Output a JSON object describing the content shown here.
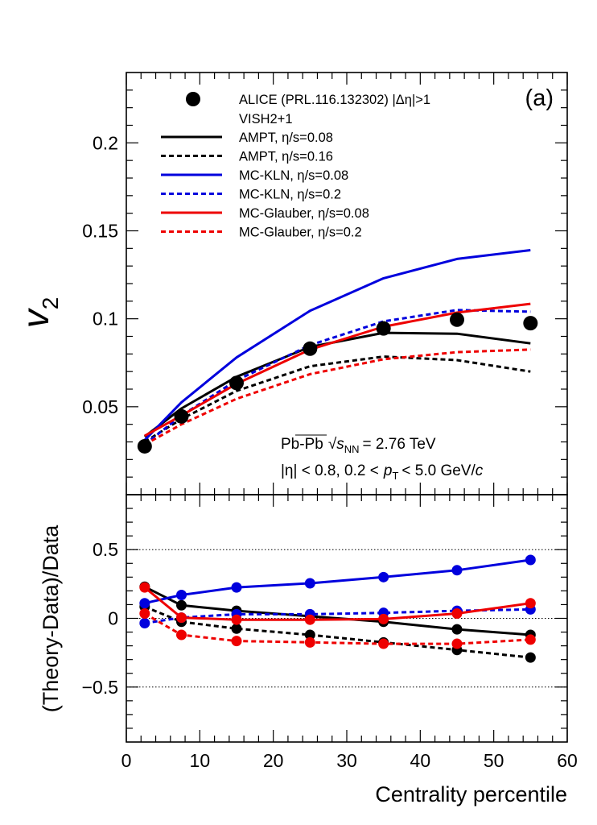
{
  "chart_data": {
    "type": "line",
    "panel_label": "(a)",
    "xlabel": "Centrality percentile",
    "xlim": [
      0,
      60
    ],
    "x_ticks": [
      "0",
      "10",
      "20",
      "30",
      "40",
      "50",
      "60"
    ],
    "top": {
      "ylabel_main": "v",
      "ylabel_sub": "2",
      "ylim": [
        0.0,
        0.24
      ],
      "y_ticks": [
        "0.05",
        "0.1",
        "0.15",
        "0.2"
      ],
      "data": {
        "name": "ALICE (PRL.116.132302) |Δη|>1",
        "x": [
          2.5,
          7.5,
          15,
          25,
          35,
          45,
          55
        ],
        "y": [
          0.0275,
          0.0445,
          0.0635,
          0.083,
          0.0945,
          0.0995,
          0.0975
        ],
        "color": "#000000"
      },
      "legend_group": "VISH2+1",
      "series": [
        {
          "name": "AMPT, η/s=0.08",
          "color": "#000000",
          "style": "solid",
          "x": [
            2.5,
            7.5,
            15,
            25,
            35,
            45,
            55
          ],
          "y": [
            0.033,
            0.049,
            0.067,
            0.084,
            0.092,
            0.0915,
            0.086
          ]
        },
        {
          "name": "AMPT, η/s=0.16",
          "color": "#000000",
          "style": "dashed",
          "x": [
            2.5,
            7.5,
            15,
            25,
            35,
            45,
            55
          ],
          "y": [
            0.03,
            0.043,
            0.059,
            0.073,
            0.0785,
            0.0765,
            0.07
          ]
        },
        {
          "name": "MC-KLN, η/s=0.08",
          "color": "#0000dd",
          "style": "solid",
          "x": [
            2.5,
            7.5,
            15,
            25,
            35,
            45,
            55
          ],
          "y": [
            0.031,
            0.0525,
            0.078,
            0.1045,
            0.123,
            0.134,
            0.139
          ]
        },
        {
          "name": "MC-KLN, η/s=0.2",
          "color": "#0000dd",
          "style": "dashed",
          "x": [
            2.5,
            7.5,
            15,
            25,
            35,
            45,
            55
          ],
          "y": [
            0.0285,
            0.045,
            0.065,
            0.085,
            0.0985,
            0.105,
            0.104
          ]
        },
        {
          "name": "MC-Glauber, η/s=0.08",
          "color": "#ee0000",
          "style": "solid",
          "x": [
            2.5,
            7.5,
            15,
            25,
            35,
            45,
            55
          ],
          "y": [
            0.0335,
            0.045,
            0.063,
            0.0825,
            0.0955,
            0.1035,
            0.1085
          ]
        },
        {
          "name": "MC-Glauber, η/s=0.2",
          "color": "#ee0000",
          "style": "dashed",
          "x": [
            2.5,
            7.5,
            15,
            25,
            35,
            45,
            55
          ],
          "y": [
            0.0285,
            0.04,
            0.0545,
            0.0685,
            0.077,
            0.081,
            0.0825
          ]
        }
      ],
      "annotation_system": "Pb-Pb",
      "annotation_energy": "= 2.76 TeV",
      "annotation_kin_eta": "|η| < 0.8, 0.2 <",
      "annotation_kin_range": "< 5.0 GeV/",
      "annotation_c": "c",
      "annotation_sqrt_s": "s",
      "annotation_nn": "NN",
      "annotation_p": "p",
      "annotation_T": "T"
    },
    "bottom": {
      "ylabel": "(Theory-Data)/Data",
      "ylim": [
        -0.9,
        0.9
      ],
      "y_ticks": [
        "−0.5",
        "0",
        "0.5"
      ],
      "reference_lines": [
        -0.5,
        0,
        0.5
      ],
      "series": [
        {
          "name": "AMPT, η/s=0.08",
          "color": "#000000",
          "style": "solid",
          "x": [
            2.5,
            7.5,
            15,
            25,
            35,
            45,
            55
          ],
          "y": [
            0.23,
            0.095,
            0.055,
            0.015,
            -0.025,
            -0.08,
            -0.12
          ]
        },
        {
          "name": "AMPT, η/s=0.16",
          "color": "#000000",
          "style": "dashed",
          "x": [
            2.5,
            7.5,
            15,
            25,
            35,
            45,
            55
          ],
          "y": [
            0.085,
            -0.025,
            -0.075,
            -0.12,
            -0.175,
            -0.23,
            -0.285
          ]
        },
        {
          "name": "MC-KLN, η/s=0.08",
          "color": "#0000dd",
          "style": "solid",
          "x": [
            2.5,
            7.5,
            15,
            25,
            35,
            45,
            55
          ],
          "y": [
            0.11,
            0.17,
            0.225,
            0.255,
            0.3,
            0.35,
            0.425
          ]
        },
        {
          "name": "MC-KLN, η/s=0.2",
          "color": "#0000dd",
          "style": "dashed",
          "x": [
            2.5,
            7.5,
            15,
            25,
            35,
            45,
            55
          ],
          "y": [
            -0.035,
            0.005,
            0.03,
            0.03,
            0.04,
            0.055,
            0.065
          ]
        },
        {
          "name": "MC-Glauber, η/s=0.08",
          "color": "#ee0000",
          "style": "solid",
          "x": [
            2.5,
            7.5,
            15,
            25,
            35,
            45,
            55
          ],
          "y": [
            0.225,
            0.005,
            -0.01,
            -0.01,
            -0.005,
            0.035,
            0.11
          ]
        },
        {
          "name": "MC-Glauber, η/s=0.2",
          "color": "#ee0000",
          "style": "dashed",
          "x": [
            2.5,
            7.5,
            15,
            25,
            35,
            45,
            55
          ],
          "y": [
            0.035,
            -0.12,
            -0.165,
            -0.175,
            -0.185,
            -0.185,
            -0.155
          ]
        }
      ]
    }
  }
}
